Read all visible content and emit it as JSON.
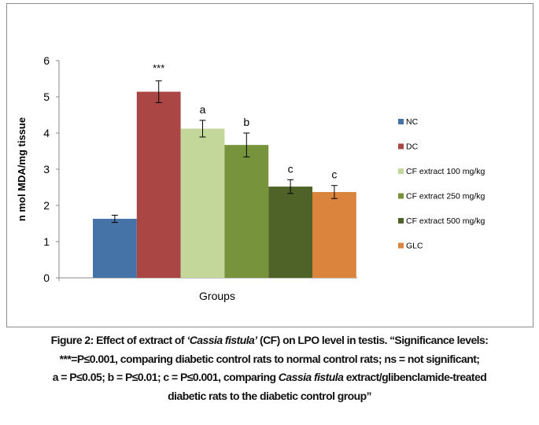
{
  "chart_data": {
    "type": "bar",
    "title": "",
    "xlabel": "Groups",
    "ylabel": "n mol MDA/mg tissue",
    "ylim": [
      0,
      6
    ],
    "yticks": [
      "0",
      "1",
      "2",
      "3",
      "4",
      "5",
      "6"
    ],
    "grid": false,
    "legend_position": "right",
    "series": [
      {
        "name": "NC",
        "value": 1.63,
        "error": 0.1,
        "annotation": "",
        "color": "#4572a7"
      },
      {
        "name": "DC",
        "value": 5.14,
        "error": 0.3,
        "annotation": "***",
        "color": "#aa4643"
      },
      {
        "name": "CF extract 100 mg/kg",
        "value": 4.12,
        "error": 0.23,
        "annotation": "a",
        "color": "#c4d79b"
      },
      {
        "name": "CF extract 250 mg/kg",
        "value": 3.67,
        "error": 0.33,
        "annotation": "b",
        "color": "#77933c"
      },
      {
        "name": "CF extract 500 mg/kg",
        "value": 2.52,
        "error": 0.19,
        "annotation": "c",
        "color": "#4f6228"
      },
      {
        "name": "GLC",
        "value": 2.37,
        "error": 0.18,
        "annotation": "c",
        "color": "#db843d"
      }
    ]
  },
  "caption": {
    "l1a": "Figure 2: Effect of extract of ",
    "l1b": "‘Cassia fistula’",
    "l1c": " (CF) on LPO level in testis. ‘‘Significance levels:",
    "l2": "***=P≤0.001, comparing diabetic control rats to normal control rats; ns = not significant;",
    "l3a": "a = P≤0.05; b = P≤0.01; c = P≤0.001, comparing ",
    "l3b": "Cassia fistula",
    "l3c": " extract/glibenclamide-treated",
    "l4": "diabetic rats to the diabetic control group’’"
  }
}
